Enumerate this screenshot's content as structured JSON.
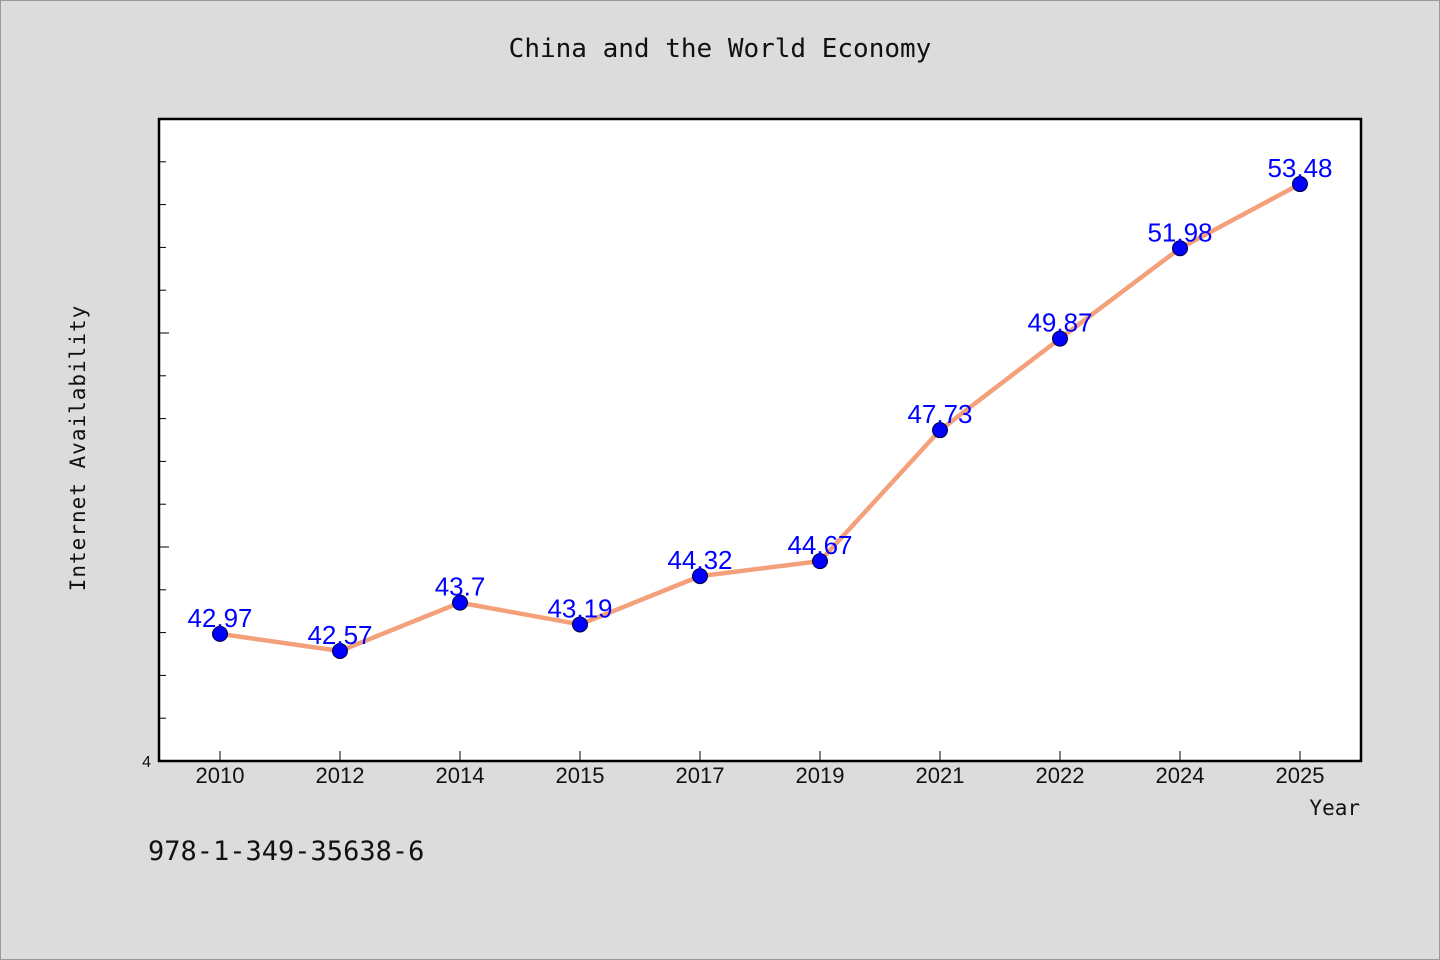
{
  "chart_data": {
    "type": "line",
    "title": "China and the World Economy",
    "xlabel": "Year",
    "ylabel": "Internet Availability",
    "categories": [
      "2010",
      "2012",
      "2014",
      "2015",
      "2017",
      "2019",
      "2021",
      "2022",
      "2024",
      "2025"
    ],
    "series": [
      {
        "values": [
          42.97,
          42.57,
          43.7,
          43.19,
          44.32,
          44.67,
          47.73,
          49.87,
          51.98,
          53.48
        ],
        "data_labels": [
          "42.97",
          "42.57",
          "43.7",
          "43.19",
          "44.32",
          "44.67",
          "47.73",
          "49.87",
          "51.98",
          "53.48"
        ]
      }
    ],
    "y_tick_labels": [
      "4"
    ],
    "ylim": [
      40,
      55
    ],
    "grid": false,
    "line_color": "#f4a07a",
    "marker_color": "#0000ff",
    "label_color": "#0000ff"
  },
  "footnote": "978-1-349-35638-6"
}
